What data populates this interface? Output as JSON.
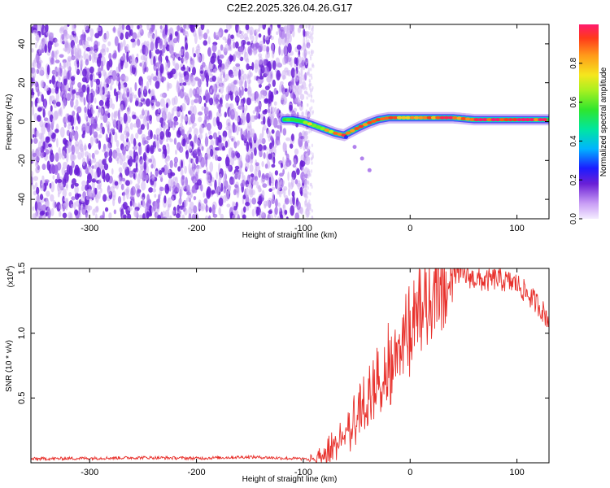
{
  "title": "C2E2.2025.326.04.26.G17",
  "chart_data": [
    {
      "type": "heatmap",
      "name": "spectrogram",
      "xlabel": "Height of straight line (km)",
      "ylabel": "Frequency (Hz)",
      "xlim": [
        -355,
        130
      ],
      "ylim": [
        -50,
        50
      ],
      "xticks": [
        -300,
        -200,
        -100,
        0,
        100
      ],
      "xtick_labels": [
        "-300",
        "-200",
        "-100",
        "0",
        "100"
      ],
      "yticks": [
        40,
        20,
        0,
        -20,
        -40
      ],
      "ytick_labels": [
        "40",
        "20",
        "0",
        "-20",
        "-40"
      ],
      "noise_region_x": [
        -355,
        -95
      ],
      "signal_trace": {
        "x": [
          -118,
          -110,
          -100,
          -90,
          -80,
          -70,
          -62,
          -55,
          -48,
          -40,
          -30,
          -20,
          -10,
          0,
          20,
          40,
          60,
          80,
          100,
          120,
          130
        ],
        "y": [
          1,
          1,
          0,
          -2,
          -4,
          -6,
          -7,
          -5,
          -3,
          -1,
          1,
          2,
          2,
          2,
          2,
          2,
          1,
          1,
          1,
          1,
          1
        ],
        "intensity": [
          0.3,
          0.5,
          0.55,
          0.6,
          0.65,
          0.7,
          0.75,
          0.7,
          0.72,
          0.75,
          0.8,
          0.85,
          0.7,
          0.75,
          0.75,
          0.8,
          0.85,
          0.9,
          0.9,
          0.85,
          0.85
        ]
      },
      "secondary_trace": {
        "x": [
          -60,
          -52,
          -45,
          -38
        ],
        "y": [
          -8,
          -13,
          -19,
          -25
        ]
      },
      "colorbar": {
        "label": "Normalized spectral amplitude",
        "ticks": [
          0.0,
          0.2,
          0.4,
          0.6,
          0.8
        ],
        "tick_labels": [
          "0.0",
          "0.2",
          "0.4",
          "0.6",
          "0.8"
        ],
        "range": [
          0,
          1
        ]
      }
    },
    {
      "type": "line",
      "name": "snr",
      "xlabel": "Height of straight line (km)",
      "ylabel": "SNR (10 * v/v)",
      "multiplier_label": "(x10",
      "multiplier_exp": "4",
      "multiplier_close": ")",
      "xlim": [
        -355,
        130
      ],
      "ylim": [
        0,
        15000
      ],
      "xticks": [
        -300,
        -200,
        -100,
        0,
        100
      ],
      "xtick_labels": [
        "-300",
        "-200",
        "-100",
        "0",
        "100"
      ],
      "yticks": [
        5000,
        10000,
        15000
      ],
      "ytick_labels": [
        "0.5",
        "1.0",
        "1.5"
      ],
      "line_color": "#e8312c",
      "series": [
        {
          "name": "SNR",
          "x": [
            -355,
            -300,
            -250,
            -200,
            -150,
            -100,
            -90,
            -80,
            -70,
            -60,
            -50,
            -40,
            -30,
            -20,
            -10,
            0,
            10,
            20,
            30,
            40,
            50,
            60,
            70,
            80,
            90,
            100,
            110,
            120,
            130
          ],
          "y": [
            300,
            350,
            400,
            350,
            450,
            300,
            500,
            900,
            1800,
            2800,
            4000,
            5500,
            7000,
            8500,
            10000,
            11000,
            12500,
            13800,
            14600,
            14800,
            14500,
            14200,
            14000,
            14200,
            14000,
            13800,
            13000,
            12200,
            11000
          ]
        }
      ]
    }
  ],
  "colors": {
    "noise_purple": "#6a1fd6",
    "noise_light": "#c4a8f0",
    "signal_line": "#e8312c"
  }
}
